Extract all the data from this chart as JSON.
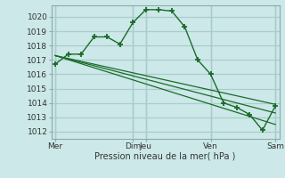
{
  "xlabel": "Pression niveau de la mer( hPa )",
  "bg_color": "#cce8e8",
  "grid_color": "#aacccc",
  "line_color": "#1a6b2a",
  "vline_color": "#8aaaaa",
  "ylim": [
    1011.5,
    1020.8
  ],
  "yticks": [
    1012,
    1013,
    1014,
    1015,
    1016,
    1017,
    1018,
    1019,
    1020
  ],
  "xtick_labels": [
    "Mer",
    "Dim",
    "Jeu",
    "Ven",
    "Sam"
  ],
  "xtick_positions": [
    0,
    6,
    7,
    12,
    17
  ],
  "vline_positions": [
    0,
    6,
    7,
    12,
    17
  ],
  "xlim": [
    -0.3,
    17.3
  ],
  "main_line_x": [
    0,
    1,
    2,
    3,
    4,
    5,
    6,
    7,
    8,
    9,
    10,
    11,
    12,
    13,
    14,
    15,
    16,
    17
  ],
  "main_line_y": [
    1016.7,
    1017.4,
    1017.4,
    1018.6,
    1018.6,
    1018.1,
    1019.6,
    1020.5,
    1020.5,
    1020.4,
    1019.3,
    1017.0,
    1016.0,
    1014.0,
    1013.7,
    1013.2,
    1012.1,
    1013.8
  ],
  "trend1_x": [
    0,
    17
  ],
  "trend1_y": [
    1017.3,
    1013.9
  ],
  "trend2_x": [
    0,
    17
  ],
  "trend2_y": [
    1017.3,
    1013.3
  ],
  "trend3_x": [
    0,
    17
  ],
  "trend3_y": [
    1017.3,
    1012.5
  ]
}
